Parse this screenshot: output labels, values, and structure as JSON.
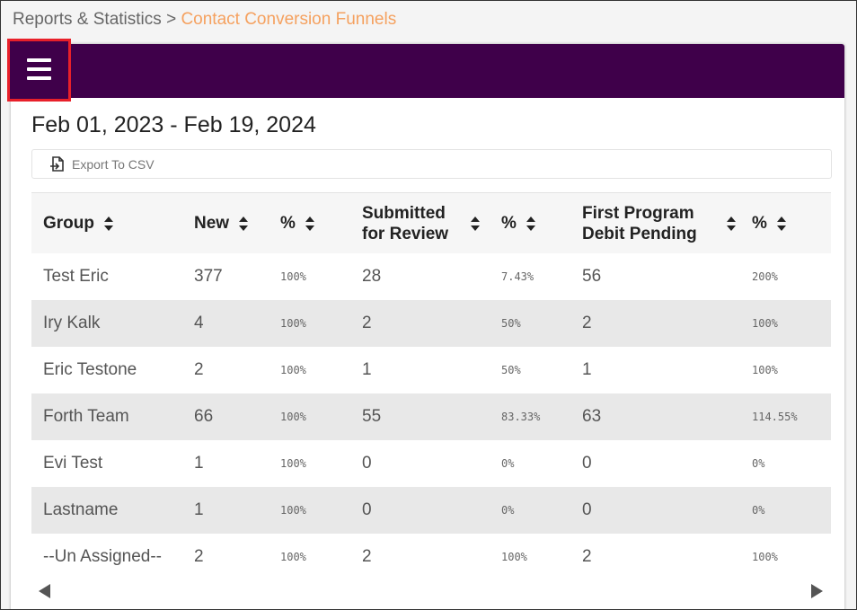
{
  "breadcrumb": {
    "parent": "Reports & Statistics",
    "separator": ">",
    "current": "Contact Conversion Funnels"
  },
  "date_range": "Feb 01, 2023 - Feb 19, 2024",
  "export_button": "Export To CSV",
  "table": {
    "columns": [
      "Group",
      "New",
      "%",
      "Submitted for Review",
      "%",
      "First Program Debit Pending",
      "%"
    ],
    "rows": [
      [
        "Test Eric",
        "377",
        "100%",
        "28",
        "7.43%",
        "56",
        "200%"
      ],
      [
        "Iry Kalk",
        "4",
        "100%",
        "2",
        "50%",
        "2",
        "100%"
      ],
      [
        "Eric Testone",
        "2",
        "100%",
        "1",
        "50%",
        "1",
        "100%"
      ],
      [
        "Forth Team",
        "66",
        "100%",
        "55",
        "83.33%",
        "63",
        "114.55%"
      ],
      [
        "Evi Test",
        "1",
        "100%",
        "0",
        "0%",
        "0",
        "0%"
      ],
      [
        "Lastname",
        "1",
        "100%",
        "0",
        "0%",
        "0",
        "0%"
      ],
      [
        "--Un Assigned--",
        "2",
        "100%",
        "2",
        "100%",
        "2",
        "100%"
      ]
    ]
  }
}
